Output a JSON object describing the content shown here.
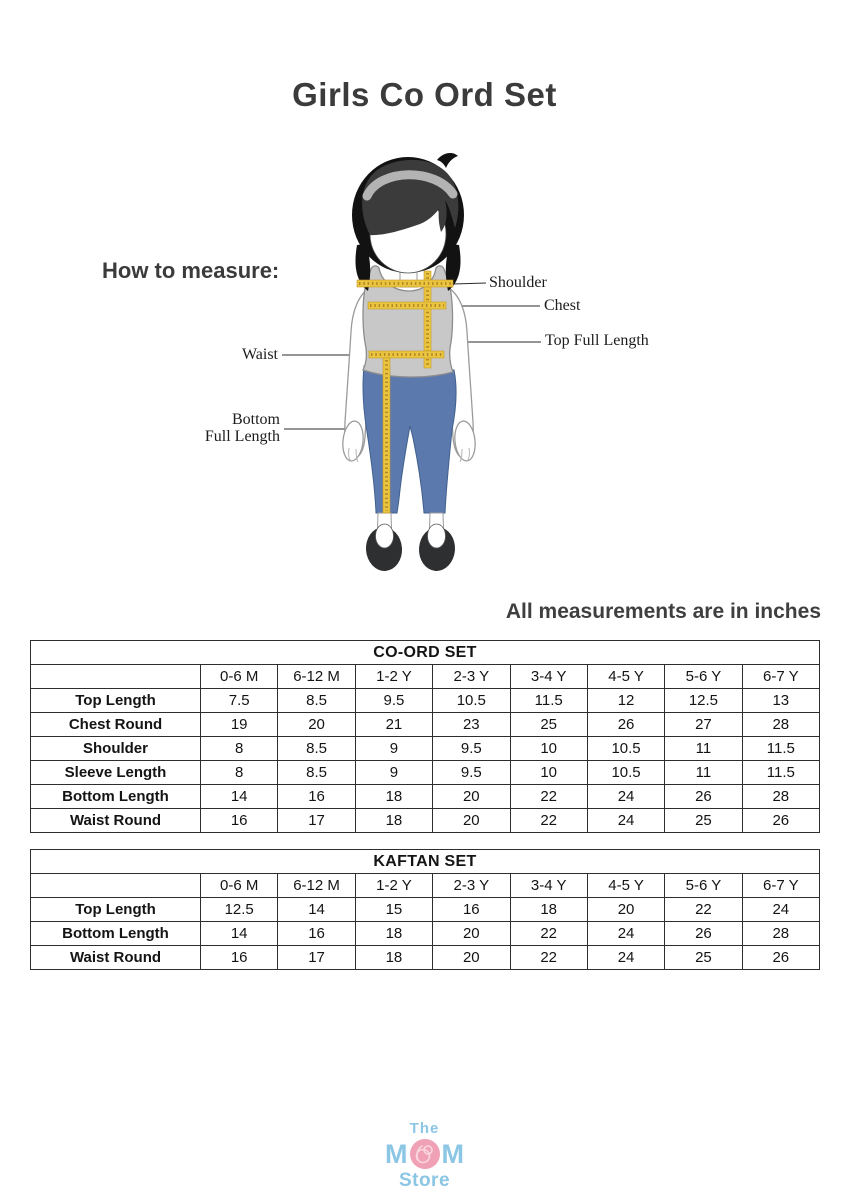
{
  "title": "Girls Co Ord Set",
  "units_note": "All measurements are in inches",
  "diagram": {
    "heading": "How to measure:",
    "labels": {
      "shoulder": "Shoulder",
      "chest": "Chest",
      "top_full_length": "Top Full Length",
      "waist": "Waist",
      "bottom_full_length_line1": "Bottom",
      "bottom_full_length_line2": "Full Length"
    }
  },
  "tables": [
    {
      "title": "CO-ORD SET",
      "columns": [
        "",
        "0-6 M",
        "6-12 M",
        "1-2 Y",
        "2-3 Y",
        "3-4 Y",
        "4-5 Y",
        "5-6 Y",
        "6-7 Y"
      ],
      "rows": [
        {
          "label": "Top Length",
          "values": [
            "7.5",
            "8.5",
            "9.5",
            "10.5",
            "11.5",
            "12",
            "12.5",
            "13"
          ]
        },
        {
          "label": "Chest Round",
          "values": [
            "19",
            "20",
            "21",
            "23",
            "25",
            "26",
            "27",
            "28"
          ]
        },
        {
          "label": "Shoulder",
          "values": [
            "8",
            "8.5",
            "9",
            "9.5",
            "10",
            "10.5",
            "11",
            "11.5"
          ]
        },
        {
          "label": "Sleeve Length",
          "values": [
            "8",
            "8.5",
            "9",
            "9.5",
            "10",
            "10.5",
            "11",
            "11.5"
          ]
        },
        {
          "label": "Bottom Length",
          "values": [
            "14",
            "16",
            "18",
            "20",
            "22",
            "24",
            "26",
            "28"
          ]
        },
        {
          "label": "Waist Round",
          "values": [
            "16",
            "17",
            "18",
            "20",
            "22",
            "24",
            "25",
            "26"
          ]
        }
      ]
    },
    {
      "title": "KAFTAN SET",
      "columns": [
        "",
        "0-6 M",
        "6-12 M",
        "1-2 Y",
        "2-3 Y",
        "3-4 Y",
        "4-5 Y",
        "5-6 Y",
        "6-7 Y"
      ],
      "rows": [
        {
          "label": "Top Length",
          "values": [
            "12.5",
            "14",
            "15",
            "16",
            "18",
            "20",
            "22",
            "24"
          ]
        },
        {
          "label": "Bottom Length",
          "values": [
            "14",
            "16",
            "18",
            "20",
            "22",
            "24",
            "26",
            "28"
          ]
        },
        {
          "label": "Waist Round",
          "values": [
            "16",
            "17",
            "18",
            "20",
            "22",
            "24",
            "25",
            "26"
          ]
        }
      ]
    }
  ],
  "logo": {
    "line1": "The",
    "mom_left": "M",
    "mom_right": "M",
    "line3": "Store"
  },
  "colors": {
    "text_dark": "#3b3b3b",
    "tape_yellow": "#eac63e",
    "pants_blue": "#5b79ac",
    "top_gray": "#c8c8c8",
    "logo_blue": "#8cc6e5",
    "logo_pink": "#f0a1b6"
  }
}
